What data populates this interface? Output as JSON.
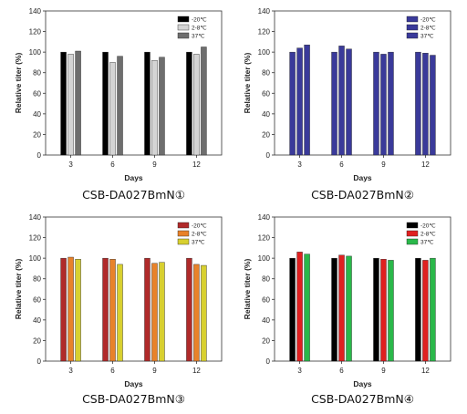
{
  "chart_data": [
    {
      "type": "bar",
      "caption": "CSB-DA027BmN①",
      "xlabel": "Days",
      "ylabel": "Relative titer (%)",
      "ylim": [
        0,
        140
      ],
      "yticks": [
        0,
        20,
        40,
        60,
        80,
        100,
        120,
        140
      ],
      "categories": [
        "3",
        "6",
        "9",
        "12"
      ],
      "legend_position": "top-right",
      "series": [
        {
          "name": "-20℃",
          "color": "#000000",
          "values": [
            100,
            100,
            100,
            100
          ]
        },
        {
          "name": "2-8℃",
          "color": "#d4d4d4",
          "values": [
            98,
            90,
            92,
            98
          ]
        },
        {
          "name": "37℃",
          "color": "#6e6e6e",
          "values": [
            101,
            96,
            95,
            105
          ]
        }
      ]
    },
    {
      "type": "bar",
      "caption": "CSB-DA027BmN②",
      "xlabel": "Days",
      "ylabel": "Relative titer (%)",
      "ylim": [
        0,
        140
      ],
      "yticks": [
        0,
        20,
        40,
        60,
        80,
        100,
        120,
        140
      ],
      "categories": [
        "3",
        "6",
        "9",
        "12"
      ],
      "legend_position": "top-right",
      "series": [
        {
          "name": "-20℃",
          "color": "#3a3a9a",
          "values": [
            100,
            100,
            100,
            100
          ]
        },
        {
          "name": "2-8℃",
          "color": "#3a3a9a",
          "values": [
            104,
            106,
            98,
            99
          ]
        },
        {
          "name": "37℃",
          "color": "#3a3a9a",
          "values": [
            107,
            103,
            100,
            97
          ]
        }
      ]
    },
    {
      "type": "bar",
      "caption": "CSB-DA027BmN③",
      "xlabel": "Days",
      "ylabel": "Relative titer (%)",
      "ylim": [
        0,
        140
      ],
      "yticks": [
        0,
        20,
        40,
        60,
        80,
        100,
        120,
        140
      ],
      "categories": [
        "3",
        "6",
        "9",
        "12"
      ],
      "legend_position": "top-right",
      "series": [
        {
          "name": "-20℃",
          "color": "#b02a2a",
          "values": [
            100,
            100,
            100,
            100
          ]
        },
        {
          "name": "2-8℃",
          "color": "#e8822a",
          "values": [
            101,
            99,
            95,
            94
          ]
        },
        {
          "name": "37℃",
          "color": "#d8d030",
          "values": [
            99,
            94,
            96,
            93
          ]
        }
      ]
    },
    {
      "type": "bar",
      "caption": "CSB-DA027BmN④",
      "xlabel": "Days",
      "ylabel": "Relative titer (%)",
      "ylim": [
        0,
        140
      ],
      "yticks": [
        0,
        20,
        40,
        60,
        80,
        100,
        120,
        140
      ],
      "categories": [
        "3",
        "6",
        "9",
        "12"
      ],
      "legend_position": "top-right",
      "series": [
        {
          "name": "-20℃",
          "color": "#000000",
          "values": [
            100,
            100,
            100,
            100
          ]
        },
        {
          "name": "2-8℃",
          "color": "#e02020",
          "values": [
            106,
            103,
            99,
            98
          ]
        },
        {
          "name": "37℃",
          "color": "#2ab84a",
          "values": [
            104,
            102,
            98,
            100
          ]
        }
      ]
    }
  ]
}
